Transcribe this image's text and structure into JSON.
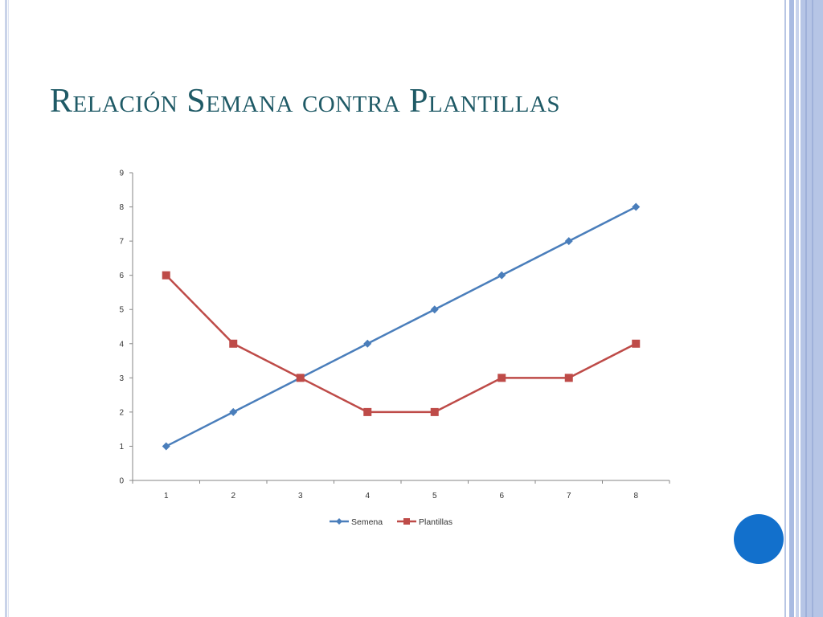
{
  "slide": {
    "title": "Relación Semana contra Plantillas",
    "accent_color": "#1f5a66",
    "side_color": "#b6c5e6",
    "dot_color": "#1270cc"
  },
  "chart_data": {
    "type": "line",
    "title": "",
    "xlabel": "",
    "ylabel": "",
    "x": [
      1,
      2,
      3,
      4,
      5,
      6,
      7,
      8
    ],
    "xticks": [
      "1",
      "2",
      "3",
      "4",
      "5",
      "6",
      "7",
      "8"
    ],
    "yticks": [
      "0",
      "1",
      "2",
      "3",
      "4",
      "5",
      "6",
      "7",
      "8",
      "9"
    ],
    "ylim": [
      0,
      9
    ],
    "grid": false,
    "legend": "bottom",
    "series": [
      {
        "name": "Semena",
        "values": [
          1,
          2,
          3,
          4,
          5,
          6,
          7,
          8
        ],
        "color": "#4a7ebb",
        "marker": "diamond"
      },
      {
        "name": "Plantillas",
        "values": [
          6,
          4,
          3,
          2,
          2,
          3,
          3,
          4
        ],
        "color": "#be4b48",
        "marker": "square"
      }
    ]
  }
}
